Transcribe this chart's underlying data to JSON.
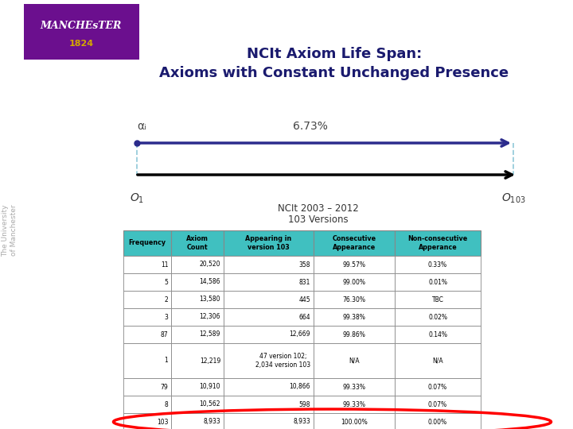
{
  "title_line1": "NCIt Axiom Life Span:",
  "title_line2": "Axioms with Constant Unchanged Presence",
  "title_color": "#1a1a6e",
  "title_fontsize": 13,
  "bg_color": "#ffffff",
  "arrow_color": "#2b2b8c",
  "axis_color": "#000000",
  "dashed_color": "#90c8d8",
  "pct_label": "6.73%",
  "alpha_label": "αᵢ",
  "caption_line1": "NCIt 2003 – 2012",
  "caption_line2": "103 Versions",
  "table_header": [
    "Frequency",
    "Axiom\nCount",
    "Appearing in\nversion 103",
    "Consecutive\nAppearance",
    "Non-consecutive\nApperance"
  ],
  "table_header_bg": "#40c0c0",
  "table_rows": [
    [
      "11",
      "20,520",
      "358",
      "99.57%",
      "0.33%"
    ],
    [
      "5",
      "14,586",
      "831",
      "99.00%",
      "0.01%"
    ],
    [
      "2",
      "13,580",
      "445",
      "76.30%",
      "TBC"
    ],
    [
      "3",
      "12,306",
      "664",
      "99.38%",
      "0.02%"
    ],
    [
      "87",
      "12,589",
      "12,669",
      "99.86%",
      "0.14%"
    ],
    [
      "1",
      "12,219",
      "47 version 102;\n2,034 version 103",
      "N/A",
      "N/A"
    ],
    [
      "79",
      "10,910",
      "10,866",
      "99.33%",
      "0.07%"
    ],
    [
      "8",
      "10,562",
      "598",
      "99.33%",
      "0.07%"
    ],
    [
      "103",
      "8,933",
      "8,933",
      "100.00%",
      "0.00%"
    ]
  ],
  "highlight_row_idx": 8,
  "manchester_purple": "#6b0f8e",
  "manchester_gold": "#d4a800",
  "univ_text_color": "#aaaaaa"
}
